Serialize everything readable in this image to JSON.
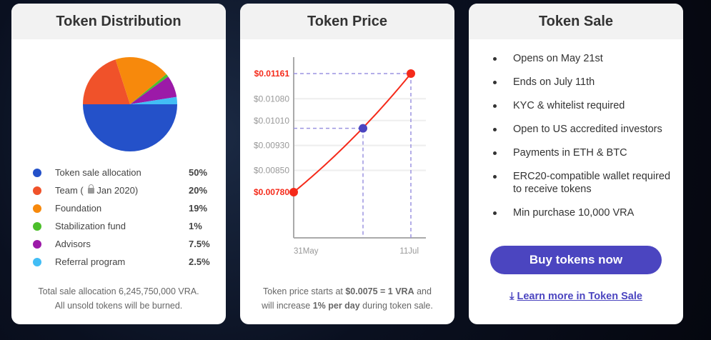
{
  "distribution": {
    "title": "Token Distribution",
    "items": [
      {
        "label": "Token sale allocation",
        "value": "50%",
        "pct": 50,
        "color": "#2451c9"
      },
      {
        "label": "Team (",
        "lock_label": "Jan 2020)",
        "value": "20%",
        "pct": 20,
        "color": "#f0522a",
        "icon": "lock-icon"
      },
      {
        "label": "Foundation",
        "value": "19%",
        "pct": 19,
        "color": "#f7890c"
      },
      {
        "label": "Stabilization fund",
        "value": "1%",
        "pct": 1,
        "color": "#4cbf2b"
      },
      {
        "label": "Advisors",
        "value": "7.5%",
        "pct": 7.5,
        "color": "#9c1aa8"
      },
      {
        "label": "Referral program",
        "value": "2.5%",
        "pct": 2.5,
        "color": "#42bdf5"
      }
    ],
    "note_line1": "Total sale allocation 6,245,750,000 VRA.",
    "note_line2": "All unsold tokens will be burned."
  },
  "price": {
    "title": "Token Price",
    "note_pre": "Token price starts at ",
    "note_b1": "$0.0075 = 1 VRA",
    "note_mid": " and will increase ",
    "note_b2": "1% per day",
    "note_post": " during token sale."
  },
  "chart_data": {
    "type": "line",
    "x_ticks": [
      "31May",
      "11Jul"
    ],
    "y_ticks": [
      "$0.00780",
      "$0.00850",
      "$0.00930",
      "$0.01010",
      "$0.01080",
      "$0.01161"
    ],
    "y_tick_values": [
      0.0078,
      0.0085,
      0.0093,
      0.0101,
      0.0108,
      0.01161
    ],
    "highlighted_ticks": [
      "$0.00780",
      "$0.01161"
    ],
    "points": [
      {
        "x": "31May",
        "y": 0.0078,
        "color": "#f52a1a"
      },
      {
        "x": "24Jun",
        "y": 0.00985,
        "color": "#4b45c0"
      },
      {
        "x": "11Jul",
        "y": 0.01161,
        "color": "#f52a1a"
      }
    ],
    "grid": true,
    "line_color": "#f52a1a",
    "guide_color": "#9b93e0"
  },
  "sale": {
    "title": "Token Sale",
    "items": [
      "Opens on May 21st",
      "Ends on July 11th",
      "KYC & whitelist required",
      "Open to US accredited investors",
      "Payments in ETH & BTC",
      "ERC20-compatible wallet required to receive tokens",
      "Min purchase 10,000 VRA"
    ],
    "buy_label": "Buy tokens now",
    "learn_label": "Learn more in Token Sale",
    "accent": "#4b45c0"
  }
}
